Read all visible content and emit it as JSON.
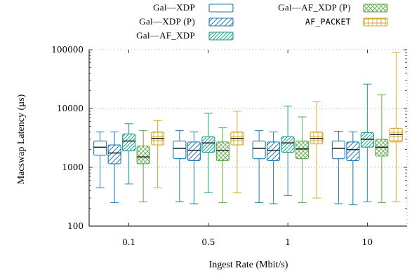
{
  "chart_data": {
    "type": "boxplot",
    "xlabel": "Ingest Rate (Mbit/s)",
    "ylabel": "Macswap Latency (µs)",
    "yscale": "log",
    "ylim": [
      100,
      100000
    ],
    "yticks": [
      100,
      1000,
      10000,
      100000
    ],
    "ytick_labels": [
      "100",
      "1000",
      "10000",
      "100000"
    ],
    "grid": "dotted",
    "legend_position": "top",
    "categories": [
      "0.1",
      "0.5",
      "1",
      "10"
    ],
    "series": [
      {
        "name": "Gal—XDP",
        "color": "#1f78b4",
        "pattern": "none",
        "boxes": [
          {
            "whisker_low": 450,
            "q1": 1600,
            "median": 2200,
            "q3": 2800,
            "whisker_high": 4000
          },
          {
            "whisker_low": 260,
            "q1": 1400,
            "median": 2100,
            "q3": 2800,
            "whisker_high": 4200
          },
          {
            "whisker_low": 250,
            "q1": 1400,
            "median": 2100,
            "q3": 2800,
            "whisker_high": 4200
          },
          {
            "whisker_low": 240,
            "q1": 1400,
            "median": 2100,
            "q3": 2800,
            "whisker_high": 4100
          }
        ]
      },
      {
        "name": "Gal—XDP (P)",
        "color": "#1f78b4",
        "pattern": "diagonal",
        "boxes": [
          {
            "whisker_low": 250,
            "q1": 1150,
            "median": 1750,
            "q3": 2400,
            "whisker_high": 4000
          },
          {
            "whisker_low": 240,
            "q1": 1300,
            "median": 1950,
            "q3": 2700,
            "whisker_high": 4000
          },
          {
            "whisker_low": 240,
            "q1": 1300,
            "median": 1950,
            "q3": 2700,
            "whisker_high": 4000
          },
          {
            "whisker_low": 230,
            "q1": 1300,
            "median": 2000,
            "q3": 2700,
            "whisker_high": 4000
          }
        ]
      },
      {
        "name": "Gal—AF_XDP",
        "color": "#1b9e8c",
        "pattern": "diagonal-dense",
        "boxes": [
          {
            "whisker_low": 520,
            "q1": 1900,
            "median": 2800,
            "q3": 3700,
            "whisker_high": 5500
          },
          {
            "whisker_low": 370,
            "q1": 1800,
            "median": 2600,
            "q3": 3300,
            "whisker_high": 8300
          },
          {
            "whisker_low": 330,
            "q1": 1800,
            "median": 2600,
            "q3": 3300,
            "whisker_high": 11000
          },
          {
            "whisker_low": 260,
            "q1": 2200,
            "median": 3000,
            "q3": 3900,
            "whisker_high": 26000
          }
        ]
      },
      {
        "name": "Gal—AF_XDP (P)",
        "color": "#5fa84a",
        "pattern": "crosshatch",
        "boxes": [
          {
            "whisker_low": 260,
            "q1": 1150,
            "median": 1500,
            "q3": 2300,
            "whisker_high": 4200
          },
          {
            "whisker_low": 250,
            "q1": 1300,
            "median": 1950,
            "q3": 2700,
            "whisker_high": 4700
          },
          {
            "whisker_low": 250,
            "q1": 1400,
            "median": 2050,
            "q3": 2800,
            "whisker_high": 7200
          },
          {
            "whisker_low": 250,
            "q1": 1550,
            "median": 2200,
            "q3": 3000,
            "whisker_high": 17000
          }
        ]
      },
      {
        "name": "AF_PACKET",
        "color": "#d4a730",
        "pattern": "grid",
        "boxes": [
          {
            "whisker_low": 450,
            "q1": 2400,
            "median": 3100,
            "q3": 4000,
            "whisker_high": 6200
          },
          {
            "whisker_low": 370,
            "q1": 2400,
            "median": 3100,
            "q3": 4000,
            "whisker_high": 9000
          },
          {
            "whisker_low": 300,
            "q1": 2500,
            "median": 3100,
            "q3": 4000,
            "whisker_high": 13000
          },
          {
            "whisker_low": 260,
            "q1": 2700,
            "median": 3600,
            "q3": 4600,
            "whisker_high": 90000
          }
        ]
      }
    ]
  }
}
